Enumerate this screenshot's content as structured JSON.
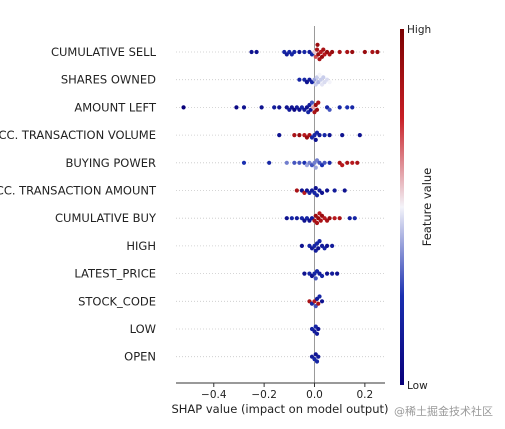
{
  "chart_data": {
    "type": "scatter",
    "variant": "shap-beeswarm",
    "xlabel": "SHAP value (impact on model output)",
    "xlim": [
      -0.55,
      0.28
    ],
    "xticks": [
      -0.4,
      -0.2,
      0.0,
      0.2
    ],
    "tick_labels": [
      "−0.4",
      "−0.2",
      "0.0",
      "0.2"
    ],
    "features": [
      {
        "name": "CUMULATIVE SELL",
        "points": [
          [
            -0.25,
            0.1
          ],
          [
            -0.23,
            0.1
          ],
          [
            -0.12,
            0.2
          ],
          [
            -0.11,
            0.15
          ],
          [
            -0.1,
            0.2
          ],
          [
            -0.09,
            0.2
          ],
          [
            -0.08,
            0.2
          ],
          [
            -0.06,
            0.1
          ],
          [
            -0.04,
            0.2
          ],
          [
            -0.02,
            0.15
          ],
          [
            -0.01,
            0.2
          ],
          [
            0,
            0.55
          ],
          [
            0.005,
            0.7
          ],
          [
            0.01,
            0.85
          ],
          [
            0.012,
            0.9
          ],
          [
            0.015,
            0.9
          ],
          [
            0.02,
            0.85
          ],
          [
            0.025,
            0.8
          ],
          [
            0.03,
            0.9
          ],
          [
            0.035,
            0.85
          ],
          [
            0.04,
            0.8
          ],
          [
            0.05,
            0.9
          ],
          [
            0.06,
            0.85
          ],
          [
            0.07,
            0.9
          ],
          [
            0.1,
            0.85
          ],
          [
            0.13,
            0.85
          ],
          [
            0.15,
            0.9
          ],
          [
            0.2,
            0.9
          ],
          [
            0.23,
            0.85
          ],
          [
            0.25,
            0.9
          ]
        ]
      },
      {
        "name": "SHARES OWNED",
        "points": [
          [
            -0.06,
            0.2
          ],
          [
            -0.04,
            0.2
          ],
          [
            -0.03,
            0.1
          ],
          [
            -0.02,
            0.15
          ],
          [
            -0.01,
            0.2
          ],
          [
            0,
            0.4
          ],
          [
            0.005,
            0.45
          ],
          [
            0.01,
            0.45
          ],
          [
            0.015,
            0.42
          ],
          [
            0.02,
            0.5
          ],
          [
            0.025,
            0.45
          ],
          [
            0.03,
            0.48
          ],
          [
            0.035,
            0.45
          ],
          [
            0.04,
            0.47
          ],
          [
            0.05,
            0.47
          ],
          [
            0.06,
            0.5
          ]
        ]
      },
      {
        "name": "AMOUNT LEFT",
        "points": [
          [
            -0.52,
            0.0
          ],
          [
            -0.31,
            0.05
          ],
          [
            -0.28,
            0.1
          ],
          [
            -0.21,
            0.1
          ],
          [
            -0.16,
            0.15
          ],
          [
            -0.14,
            0.1
          ],
          [
            -0.11,
            0.1
          ],
          [
            -0.1,
            0.15
          ],
          [
            -0.09,
            0.1
          ],
          [
            -0.08,
            0.05
          ],
          [
            -0.07,
            0.15
          ],
          [
            -0.06,
            0.1
          ],
          [
            -0.05,
            0.2
          ],
          [
            -0.04,
            0.15
          ],
          [
            -0.03,
            0.1
          ],
          [
            -0.025,
            0.2
          ],
          [
            -0.02,
            0.15
          ],
          [
            -0.015,
            0.1
          ],
          [
            -0.01,
            0.3
          ],
          [
            -0.005,
            0.6
          ],
          [
            0,
            0.85
          ],
          [
            0.005,
            0.9
          ],
          [
            0.01,
            0.9
          ],
          [
            0.015,
            0.85
          ],
          [
            0.05,
            0.2
          ],
          [
            0.06,
            0.3
          ],
          [
            0.1,
            0.2
          ],
          [
            0.13,
            0.25
          ],
          [
            0.15,
            0.2
          ]
        ]
      },
      {
        "name": "ACC. TRANSACTION VOLUME",
        "points": [
          [
            -0.14,
            0.1
          ],
          [
            -0.08,
            0.85
          ],
          [
            -0.06,
            0.9
          ],
          [
            -0.04,
            0.8
          ],
          [
            -0.03,
            0.9
          ],
          [
            -0.02,
            0.85
          ],
          [
            -0.01,
            0.2
          ],
          [
            0,
            0.2
          ],
          [
            0.005,
            0.1
          ],
          [
            0.01,
            0.2
          ],
          [
            0.02,
            0.15
          ],
          [
            0.04,
            0.2
          ],
          [
            0.06,
            0.1
          ],
          [
            0.11,
            0.1
          ],
          [
            0.18,
            0.1
          ]
        ]
      },
      {
        "name": "BUYING POWER",
        "points": [
          [
            -0.28,
            0.25
          ],
          [
            -0.18,
            0.2
          ],
          [
            -0.11,
            0.35
          ],
          [
            -0.08,
            0.3
          ],
          [
            -0.06,
            0.3
          ],
          [
            -0.04,
            0.25
          ],
          [
            -0.03,
            0.4
          ],
          [
            -0.02,
            0.35
          ],
          [
            -0.01,
            0.3
          ],
          [
            0,
            0.35
          ],
          [
            0.005,
            0.4
          ],
          [
            0.01,
            0.35
          ],
          [
            0.02,
            0.3
          ],
          [
            0.03,
            0.25
          ],
          [
            0.04,
            0.3
          ],
          [
            0.06,
            0.2
          ],
          [
            0.1,
            0.85
          ],
          [
            0.11,
            0.8
          ],
          [
            0.13,
            0.85
          ],
          [
            0.15,
            0.8
          ],
          [
            0.17,
            0.85
          ]
        ]
      },
      {
        "name": "ACC. TRANSACTION AMOUNT",
        "points": [
          [
            -0.07,
            0.85
          ],
          [
            -0.05,
            0.1
          ],
          [
            -0.04,
            0.8
          ],
          [
            -0.03,
            0.1
          ],
          [
            -0.02,
            0.2
          ],
          [
            -0.01,
            0.15
          ],
          [
            0,
            0.2
          ],
          [
            0.005,
            0.1
          ],
          [
            0.01,
            0.2
          ],
          [
            0.02,
            0.15
          ],
          [
            0.03,
            0.1
          ],
          [
            0.05,
            0.1
          ],
          [
            0.08,
            0.15
          ],
          [
            0.12,
            0.1
          ]
        ]
      },
      {
        "name": "CUMULATIVE BUY",
        "points": [
          [
            -0.11,
            0.1
          ],
          [
            -0.09,
            0.2
          ],
          [
            -0.07,
            0.15
          ],
          [
            -0.05,
            0.2
          ],
          [
            -0.04,
            0.1
          ],
          [
            -0.03,
            0.2
          ],
          [
            -0.02,
            0.1
          ],
          [
            -0.01,
            0.15
          ],
          [
            0,
            0.85
          ],
          [
            0.005,
            0.9
          ],
          [
            0.01,
            0.85
          ],
          [
            0.015,
            0.9
          ],
          [
            0.02,
            0.8
          ],
          [
            0.025,
            0.85
          ],
          [
            0.03,
            0.9
          ],
          [
            0.04,
            0.8
          ],
          [
            0.05,
            0.85
          ],
          [
            0.06,
            0.9
          ],
          [
            0.08,
            0.8
          ],
          [
            0.1,
            0.85
          ],
          [
            0.14,
            0.15
          ],
          [
            0.16,
            0.2
          ]
        ]
      },
      {
        "name": "HIGH",
        "points": [
          [
            -0.05,
            0.1
          ],
          [
            -0.02,
            0.2
          ],
          [
            -0.01,
            0.15
          ],
          [
            0,
            0.2
          ],
          [
            0.005,
            0.15
          ],
          [
            0.01,
            0.2
          ],
          [
            0.015,
            0.1
          ],
          [
            0.02,
            0.2
          ],
          [
            0.03,
            0.15
          ],
          [
            0.04,
            0.2
          ],
          [
            0.05,
            0.1
          ],
          [
            0.07,
            0.15
          ]
        ]
      },
      {
        "name": "LATEST_PRICE",
        "points": [
          [
            -0.04,
            0.1
          ],
          [
            -0.02,
            0.2
          ],
          [
            -0.01,
            0.1
          ],
          [
            0,
            0.2
          ],
          [
            0.005,
            0.3
          ],
          [
            0.01,
            0.2
          ],
          [
            0.02,
            0.15
          ],
          [
            0.03,
            0.2
          ],
          [
            0.05,
            0.1
          ],
          [
            0.07,
            0.15
          ],
          [
            0.09,
            0.1
          ]
        ]
      },
      {
        "name": "STOCK_CODE",
        "points": [
          [
            -0.02,
            0.85
          ],
          [
            -0.01,
            0.2
          ],
          [
            0,
            0.8
          ],
          [
            0.005,
            0.3
          ],
          [
            0.01,
            0.15
          ],
          [
            0.015,
            0.85
          ],
          [
            0.02,
            0.2
          ],
          [
            0.03,
            0.1
          ]
        ]
      },
      {
        "name": "LOW",
        "points": [
          [
            -0.01,
            0.2
          ],
          [
            0,
            0.15
          ],
          [
            0.005,
            0.2
          ],
          [
            0.01,
            0.15
          ],
          [
            0.015,
            0.1
          ]
        ]
      },
      {
        "name": "OPEN",
        "points": [
          [
            -0.01,
            0.15
          ],
          [
            0,
            0.2
          ],
          [
            0.005,
            0.1
          ],
          [
            0.01,
            0.2
          ],
          [
            0.015,
            0.15
          ]
        ]
      }
    ],
    "colorbar": {
      "label": "Feature value",
      "high_label": "High",
      "low_label": "Low",
      "colors": [
        "#08007a",
        "#1a2fb0",
        "#f4f4fa",
        "#c81f26",
        "#7a0000"
      ]
    }
  },
  "watermark": "@稀土掘金技术社区"
}
